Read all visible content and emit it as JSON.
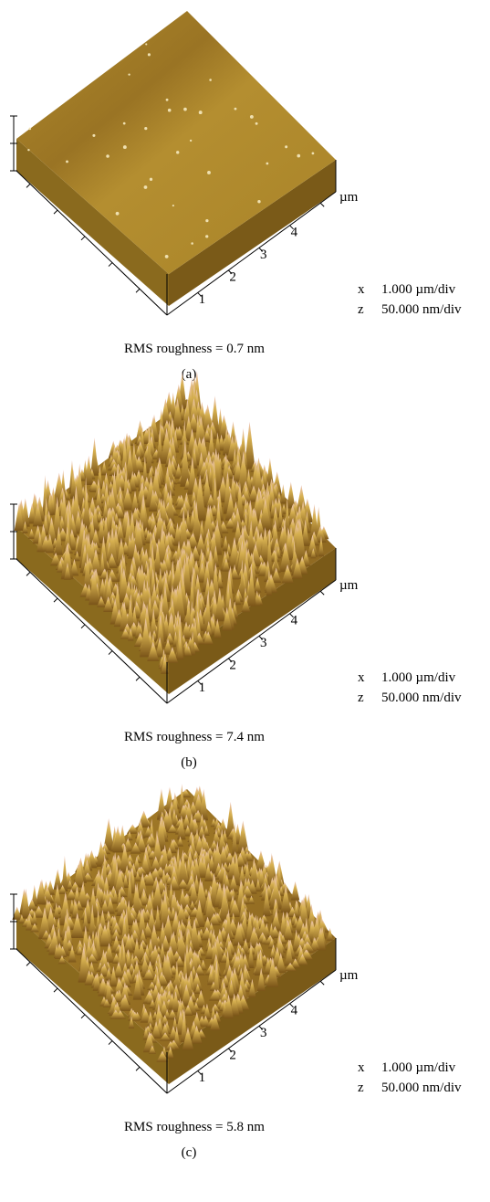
{
  "panels": [
    {
      "axis_ticks": [
        "1",
        "2",
        "3",
        "4"
      ],
      "unit": "µm",
      "scale": [
        {
          "axis": "x",
          "value": "1.000 µm/div"
        },
        {
          "axis": "z",
          "value": "50.000 nm/div"
        }
      ],
      "caption": "RMS roughness = 0.7 nm",
      "label": "(a)"
    },
    {
      "axis_ticks": [
        "1",
        "2",
        "3",
        "4"
      ],
      "unit": "µm",
      "scale": [
        {
          "axis": "x",
          "value": "1.000 µm/div"
        },
        {
          "axis": "z",
          "value": "50.000 nm/div"
        }
      ],
      "caption": "RMS roughness = 7.4 nm",
      "label": "(b)"
    },
    {
      "axis_ticks": [
        "1",
        "2",
        "3",
        "4"
      ],
      "unit": "µm",
      "scale": [
        {
          "axis": "x",
          "value": "1.000 µm/div"
        },
        {
          "axis": "z",
          "value": "50.000 nm/div"
        }
      ],
      "caption": "RMS roughness = 5.8 nm",
      "label": "(c)"
    }
  ]
}
